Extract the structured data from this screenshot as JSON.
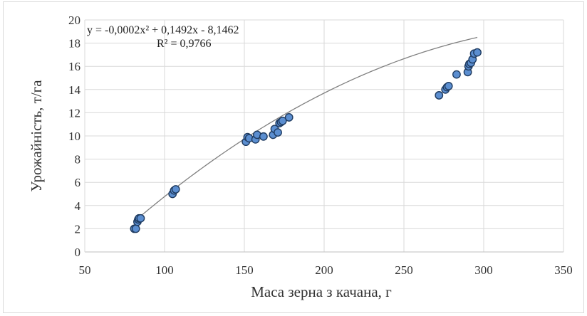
{
  "chart_data": {
    "type": "scatter",
    "xlabel": "Маса зерна з качана, г",
    "ylabel": "Урожайність, т/га",
    "xlim": [
      50,
      350
    ],
    "ylim": [
      0,
      20
    ],
    "xticks": [
      50,
      100,
      150,
      200,
      250,
      300,
      350
    ],
    "yticks": [
      0,
      2,
      4,
      6,
      8,
      10,
      12,
      14,
      16,
      18,
      20
    ],
    "grid": "vertical and horizontal",
    "legend": "none",
    "colors": {
      "marker_fill": "#5b8ed0",
      "marker_edge": "#1f3b60",
      "trendline": "#808080",
      "grid": "#d9d9d9"
    },
    "series": [
      {
        "x": [
          81,
          82,
          83,
          83.5,
          84,
          85,
          105,
          106,
          107,
          151,
          152,
          153,
          157,
          158,
          162,
          168,
          169,
          171,
          172,
          173,
          174,
          178,
          272,
          276,
          277,
          278,
          283,
          290,
          290.5,
          291,
          292,
          293,
          294,
          296
        ],
        "y": [
          2.0,
          2.0,
          2.6,
          2.8,
          2.9,
          2.9,
          5.0,
          5.3,
          5.4,
          9.5,
          9.9,
          9.8,
          9.7,
          10.1,
          9.95,
          10.1,
          10.6,
          10.3,
          11.1,
          11.2,
          11.3,
          11.6,
          13.5,
          14.0,
          14.2,
          14.3,
          15.3,
          15.5,
          16.0,
          16.2,
          16.3,
          16.6,
          17.1,
          17.2
        ]
      }
    ],
    "trendline": {
      "type": "polynomial",
      "coefficients": [
        -0.0002,
        0.1492,
        -8.1462
      ],
      "equation": "y = -0,0002x² + 0,1492x - 8,1462",
      "r2": "R² = 0,9766",
      "x_range": [
        81,
        296
      ]
    }
  }
}
